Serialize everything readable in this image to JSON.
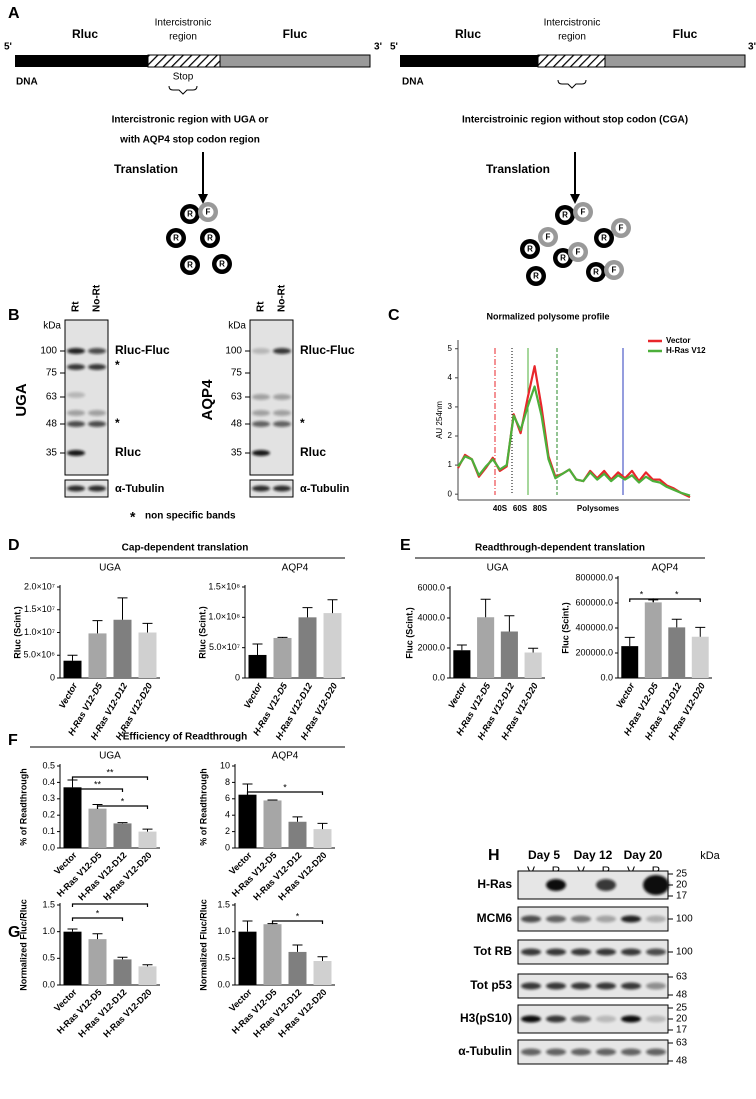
{
  "panel_labels": [
    "A",
    "B",
    "C",
    "D",
    "E",
    "F",
    "G",
    "H"
  ],
  "panel_a": {
    "left": {
      "five_prime": "5'",
      "three_prime": "3'",
      "rluc": "Rluc",
      "region": [
        "Intercistronic",
        "region"
      ],
      "fluc": "Fluc",
      "dna": "DNA",
      "stop": "Stop",
      "caption": [
        "Intercistronic region with UGA or",
        "with AQP4 stop codon region"
      ],
      "translation": "Translation",
      "particles": [
        "R",
        "F",
        "R",
        "R",
        "R",
        "R"
      ]
    },
    "right": {
      "five_prime": "5'",
      "three_prime": "3'",
      "rluc": "Rluc",
      "region": [
        "Intercistronic",
        "region"
      ],
      "fluc": "Fluc",
      "dna": "DNA",
      "caption": [
        "Intercistroinic region without stop codon (CGA)"
      ],
      "translation": "Translation",
      "particles": [
        "R",
        "F",
        "R",
        "F",
        "R",
        "F",
        "R",
        "F",
        "R",
        "F",
        "R"
      ]
    }
  },
  "panel_b": {
    "blots": [
      {
        "name": "UGA",
        "kda": "kDa",
        "lanes": [
          "Rt",
          "No-Rt"
        ],
        "ladder": [
          100,
          75,
          63,
          48,
          35
        ],
        "bands": [
          "Rluc-Fluc",
          "*",
          "*",
          "Rluc"
        ],
        "loading": "α-Tubulin"
      },
      {
        "name": "AQP4",
        "kda": "kDa",
        "lanes": [
          "Rt",
          "No-Rt"
        ],
        "ladder": [
          100,
          75,
          63,
          48,
          35
        ],
        "bands": [
          "Rluc-Fluc",
          "*",
          "Rluc"
        ],
        "loading": "α-Tubulin"
      }
    ],
    "footnote": [
      "*",
      "non specific bands"
    ]
  },
  "section_titles": [
    "Cap-dependent translation",
    "Readthrough-dependent translation",
    "Efficiency of Readthrough"
  ],
  "chart_data": [
    {
      "type": "line",
      "title": "Normalized polysome profile",
      "y_label": "AU 254nm",
      "x": [
        0,
        3,
        6,
        9,
        12,
        15,
        18,
        21,
        24,
        27,
        30,
        33,
        36,
        39,
        42,
        45,
        48,
        51,
        54,
        57,
        60,
        63,
        66,
        69,
        72,
        75,
        78,
        81,
        84,
        87,
        90,
        93,
        96,
        100
      ],
      "xlim": [
        0,
        100
      ],
      "ylim": [
        -0.2,
        5.3
      ],
      "yticks": [
        0,
        1,
        2,
        3,
        4,
        5
      ],
      "series": [
        {
          "name": "Vector",
          "color": "#e8262b",
          "values": [
            0.9,
            1.35,
            1.2,
            0.6,
            0.9,
            1.25,
            0.8,
            0.95,
            2.75,
            2.1,
            3.3,
            4.4,
            3.0,
            1.3,
            0.6,
            0.7,
            0.85,
            0.5,
            0.45,
            0.8,
            0.55,
            0.8,
            0.5,
            0.75,
            0.55,
            0.8,
            0.45,
            0.75,
            0.5,
            0.5,
            0.3,
            0.2,
            0.05,
            -0.1
          ]
        },
        {
          "name": "H-Ras V12",
          "color": "#4caf3a",
          "values": [
            0.95,
            1.3,
            1.2,
            0.65,
            0.95,
            1.2,
            0.85,
            1.0,
            2.7,
            2.2,
            3.0,
            3.7,
            2.7,
            1.2,
            0.55,
            0.7,
            0.85,
            0.5,
            0.45,
            0.75,
            0.5,
            0.7,
            0.45,
            0.65,
            0.5,
            0.65,
            0.4,
            0.6,
            0.45,
            0.4,
            0.25,
            0.15,
            0.05,
            -0.05
          ]
        }
      ],
      "annotations": [
        "40S",
        "60S",
        "80S",
        "Polysomes"
      ]
    },
    {
      "type": "bar",
      "title": "UGA",
      "y_label": "Rluc (Scint.)",
      "categories": [
        "Vector",
        "H-Ras V12-D5",
        "H-Ras V12-D12",
        "H-Ras V12-D20"
      ],
      "values": [
        3800000,
        9800000,
        12800000,
        10000000
      ],
      "errors": [
        1200000,
        2800000,
        4800000,
        2000000
      ],
      "colors": [
        "#000000",
        "#a6a6a6",
        "#7f7f7f",
        "#d0d0d0"
      ],
      "ylim": [
        0,
        20000000
      ],
      "yticks": [
        0,
        {
          "value": 5000000,
          "label": "5.0×10⁶"
        },
        {
          "value": 10000000,
          "label": "1.0×10⁷"
        },
        {
          "value": 15000000,
          "label": "1.5×10⁷"
        },
        {
          "value": 20000000,
          "label": "2.0×10⁷"
        }
      ]
    },
    {
      "type": "bar",
      "title": "AQP4",
      "y_label": "Rluc (Scint.)",
      "categories": [
        "Vector",
        "H-Ras V12-D5",
        "H-Ras V12-D12",
        "H-Ras V12-D20"
      ],
      "values": [
        38000000,
        66000000,
        100000000,
        107000000
      ],
      "errors": [
        18000000,
        1000000,
        16000000,
        22000000
      ],
      "colors": [
        "#000000",
        "#a6a6a6",
        "#7f7f7f",
        "#d0d0d0"
      ],
      "ylim": [
        0,
        150000000
      ],
      "yticks": [
        0,
        {
          "value": 50000000,
          "label": "5.0×10⁷"
        },
        {
          "value": 100000000,
          "label": "1.0×10⁸"
        },
        {
          "value": 150000000,
          "label": "1.5×10⁸"
        }
      ]
    },
    {
      "type": "bar",
      "title": "UGA",
      "y_label": "Fluc (Scint.)",
      "categories": [
        "Vector",
        "H-Ras V12-D5",
        "H-Ras V12-D12",
        "H-Ras V12-D20"
      ],
      "values": [
        1850,
        4050,
        3100,
        1700
      ],
      "errors": [
        350,
        1200,
        1050,
        280
      ],
      "colors": [
        "#000000",
        "#a6a6a6",
        "#7f7f7f",
        "#d0d0d0"
      ],
      "ylim": [
        0,
        6000
      ],
      "yticks": [
        {
          "value": 0,
          "label": "0.0"
        },
        {
          "value": 2000,
          "label": "2000.0"
        },
        {
          "value": 4000,
          "label": "4000.0"
        },
        {
          "value": 6000,
          "label": "6000.0"
        }
      ]
    },
    {
      "type": "bar",
      "title": "AQP4",
      "y_label": "Fluc (Scint.)",
      "categories": [
        "Vector",
        "H-Ras V12-D5",
        "H-Ras V12-D12",
        "H-Ras V12-D20"
      ],
      "values": [
        255000,
        605000,
        405000,
        330000
      ],
      "errors": [
        70000,
        20000,
        65000,
        75000
      ],
      "colors": [
        "#000000",
        "#a6a6a6",
        "#7f7f7f",
        "#d0d0d0"
      ],
      "ylim": [
        0,
        800000
      ],
      "yticks": [
        {
          "value": 0,
          "label": "0.0"
        },
        {
          "value": 200000,
          "label": "200000.0"
        },
        {
          "value": 400000,
          "label": "400000.0"
        },
        {
          "value": 600000,
          "label": "600000.0"
        },
        {
          "value": 800000,
          "label": "800000.0"
        }
      ],
      "annotations": [
        "*",
        "*"
      ]
    },
    {
      "type": "bar",
      "title": "UGA",
      "y_label": "% of Readthrough",
      "categories": [
        "Vector",
        "H-Ras V12-D5",
        "H-Ras V12-D12",
        "H-Ras V12-D20"
      ],
      "values": [
        0.37,
        0.24,
        0.15,
        0.1
      ],
      "errors": [
        0.045,
        0.025,
        0.005,
        0.015
      ],
      "colors": [
        "#000000",
        "#a6a6a6",
        "#7f7f7f",
        "#d0d0d0"
      ],
      "ylim": [
        0,
        0.5
      ],
      "yticks": [
        {
          "value": 0,
          "label": "0.0"
        },
        0.1,
        0.2,
        0.3,
        0.4,
        0.5
      ],
      "annotations": [
        "**",
        "**",
        "*"
      ]
    },
    {
      "type": "bar",
      "title": "AQP4",
      "y_label": "% of Readthrough",
      "categories": [
        "Vector",
        "H-Ras V12-D5",
        "H-Ras V12-D12",
        "H-Ras V12-D20"
      ],
      "values": [
        6.5,
        5.8,
        3.2,
        2.3
      ],
      "errors": [
        1.3,
        0.05,
        0.6,
        0.7
      ],
      "colors": [
        "#000000",
        "#a6a6a6",
        "#7f7f7f",
        "#d0d0d0"
      ],
      "ylim": [
        0,
        10
      ],
      "yticks": [
        0,
        2,
        4,
        6,
        8,
        10
      ],
      "annotations": [
        "*"
      ]
    },
    {
      "type": "bar",
      "y_label": "Normalized Fluc/Rluc",
      "categories": [
        "Vector",
        "H-Ras V12-D5",
        "H-Ras V12-D12",
        "H-Ras V12-D20"
      ],
      "values": [
        1.0,
        0.86,
        0.48,
        0.35
      ],
      "errors": [
        0.05,
        0.1,
        0.04,
        0.03
      ],
      "colors": [
        "#000000",
        "#a6a6a6",
        "#7f7f7f",
        "#d0d0d0"
      ],
      "ylim": [
        0,
        1.5
      ],
      "yticks": [
        {
          "value": 0,
          "label": "0.0"
        },
        0.5,
        {
          "value": 1,
          "label": "1.0"
        },
        1.5
      ],
      "annotations": [
        "*",
        "*"
      ]
    },
    {
      "type": "bar",
      "y_label": "Normalized Fluc/Rluc",
      "categories": [
        "Vector",
        "H-Ras V12-D5",
        "H-Ras V12-D12",
        "H-Ras V12-D20"
      ],
      "values": [
        1.0,
        1.14,
        0.62,
        0.45
      ],
      "errors": [
        0.2,
        0.01,
        0.13,
        0.08
      ],
      "colors": [
        "#000000",
        "#a6a6a6",
        "#7f7f7f",
        "#d0d0d0"
      ],
      "ylim": [
        0,
        1.5
      ],
      "yticks": [
        {
          "value": 0,
          "label": "0.0"
        },
        0.5,
        {
          "value": 1,
          "label": "1.0"
        },
        1.5
      ],
      "annotations": [
        "*"
      ]
    }
  ],
  "panel_h": {
    "days": [
      "Day 5",
      "Day 12",
      "Day 20"
    ],
    "lanes": [
      "V",
      "R",
      "V",
      "R",
      "V",
      "R"
    ],
    "kda": "kDa",
    "rows": [
      {
        "label": "H-Ras",
        "markers": [
          25,
          20,
          17
        ]
      },
      {
        "label": "MCM6",
        "markers": [
          100
        ]
      },
      {
        "label": "Tot RB",
        "markers": [
          100
        ]
      },
      {
        "label": "Tot p53",
        "markers": [
          63,
          48
        ]
      },
      {
        "label": "H3(pS10)",
        "markers": [
          25,
          20,
          17
        ]
      },
      {
        "label": "α-Tubulin",
        "markers": [
          63,
          48
        ]
      }
    ]
  }
}
